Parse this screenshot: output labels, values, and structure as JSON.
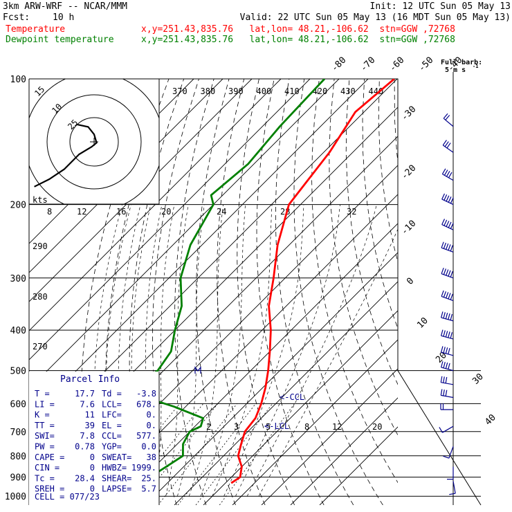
{
  "header": {
    "model": "3km ARW-WRF -- NCAR/MMM",
    "init": "Init: 12 UTC Sun 05 May 13",
    "fcst_label": "Fcst:",
    "fcst_value": "10 h",
    "valid": "Valid: 22 UTC Sun 05 May 13 (16 MDT Sun 05 May 13)",
    "temp_label": "Temperature",
    "temp_info": "x,y=251.43,835.76   lat,lon= 48.21,-106.62  stn=GGW ,72768",
    "dew_label": "Dewpoint temperature",
    "dew_info": "x,y=251.43,835.76   lat,lon= 48.21,-106.62  stn=GGW ,72768"
  },
  "barb_legend": {
    "line1": "Full barb:",
    "line2": "5 m s"
  },
  "hodograph": {
    "ring_labels": [
      "15",
      "10",
      "25"
    ],
    "units": "kts"
  },
  "parcel_info": {
    "title": "Parcel Info",
    "rows": [
      [
        "T  =",
        "17.7",
        "Td =",
        "-3.8"
      ],
      [
        "LI =",
        "7.6",
        "LCL=",
        "678."
      ],
      [
        "K  =",
        "11",
        "LFC=",
        "0."
      ],
      [
        "TT =",
        "39",
        "EL =",
        "0."
      ],
      [
        "SWI=",
        "7.8",
        "CCL=",
        "577."
      ],
      [
        "PW =",
        "0.78",
        "YGP=",
        "0.0"
      ],
      [
        "CAPE =",
        "0",
        "SWEAT=",
        "38"
      ],
      [
        "CIN =",
        "0",
        "HWBZ=",
        "1999."
      ],
      [
        "Tc =",
        "28.4",
        "SHEAR=",
        "25."
      ],
      [
        "SREH =",
        "0",
        "LAPSE=",
        "5.7"
      ]
    ],
    "cell": "CELL = 077/23"
  },
  "annotations": {
    "ccl": "<-CCL",
    "lcl": "<-LCL"
  },
  "chart_data": {
    "type": "line",
    "title": "",
    "ylabel": "",
    "pressure_levels": [
      100,
      200,
      300,
      400,
      500,
      600,
      700,
      800,
      900,
      1000
    ],
    "top_isotherm_labels": [
      "-80",
      "-70",
      "-60",
      "-50",
      "-40"
    ],
    "right_isotherm_labels": [
      "-30",
      "-20",
      "-10",
      "0",
      "10",
      "20",
      "30",
      "40"
    ],
    "theta_e_labels": [
      "370",
      "380",
      "390",
      "400",
      "410",
      "420",
      "430",
      "440"
    ],
    "theta_labels": [
      "290",
      "280",
      "270"
    ],
    "mixing_ratio_labels_upper": [
      "8",
      "12",
      "16",
      "20",
      "24",
      "28",
      "32"
    ],
    "mixing_ratio_labels_lower": [
      "2",
      "3",
      "5",
      "8",
      "12",
      "20"
    ],
    "series": [
      {
        "name": "Temperature",
        "color": "#ff0000",
        "points": [
          [
            100,
            -61
          ],
          [
            120,
            -63
          ],
          [
            150,
            -58
          ],
          [
            200,
            -54
          ],
          [
            250,
            -44
          ],
          [
            300,
            -34
          ],
          [
            350,
            -26
          ],
          [
            400,
            -17
          ],
          [
            450,
            -10
          ],
          [
            500,
            -4
          ],
          [
            550,
            1
          ],
          [
            600,
            5
          ],
          [
            650,
            8
          ],
          [
            700,
            9
          ],
          [
            750,
            12
          ],
          [
            800,
            15
          ],
          [
            850,
            20
          ],
          [
            900,
            23
          ],
          [
            930,
            22
          ]
        ]
      },
      {
        "name": "Dewpoint temperature",
        "color": "#008000",
        "points": [
          [
            100,
            -85
          ],
          [
            130,
            -84
          ],
          [
            160,
            -82
          ],
          [
            190,
            -84
          ],
          [
            200,
            -80
          ],
          [
            250,
            -74
          ],
          [
            300,
            -66
          ],
          [
            350,
            -56
          ],
          [
            400,
            -50
          ],
          [
            450,
            -44
          ],
          [
            500,
            -42
          ],
          [
            560,
            -46
          ],
          [
            610,
            -24
          ],
          [
            650,
            -10
          ],
          [
            680,
            -8
          ],
          [
            700,
            -10
          ],
          [
            750,
            -8
          ],
          [
            800,
            -4
          ],
          [
            850,
            -6
          ],
          [
            900,
            -8
          ],
          [
            920,
            -8
          ]
        ]
      }
    ],
    "wind_barbs": [
      {
        "p": 130,
        "dir": 310,
        "spd": 10
      },
      {
        "p": 150,
        "dir": 305,
        "spd": 15
      },
      {
        "p": 175,
        "dir": 300,
        "spd": 20
      },
      {
        "p": 200,
        "dir": 295,
        "spd": 25
      },
      {
        "p": 230,
        "dir": 295,
        "spd": 25
      },
      {
        "p": 260,
        "dir": 290,
        "spd": 25
      },
      {
        "p": 300,
        "dir": 290,
        "spd": 25
      },
      {
        "p": 340,
        "dir": 290,
        "spd": 25
      },
      {
        "p": 380,
        "dir": 285,
        "spd": 25
      },
      {
        "p": 420,
        "dir": 285,
        "spd": 25
      },
      {
        "p": 460,
        "dir": 285,
        "spd": 20
      },
      {
        "p": 500,
        "dir": 285,
        "spd": 20
      },
      {
        "p": 540,
        "dir": 280,
        "spd": 15
      },
      {
        "p": 580,
        "dir": 280,
        "spd": 15
      },
      {
        "p": 620,
        "dir": 270,
        "spd": 10
      },
      {
        "p": 680,
        "dir": 240,
        "spd": 5
      },
      {
        "p": 760,
        "dir": 200,
        "spd": 5
      },
      {
        "p": 850,
        "dir": 180,
        "spd": 5
      },
      {
        "p": 920,
        "dir": 170,
        "spd": 5
      }
    ],
    "hodograph_trace": [
      [
        -1.2,
        -0.9
      ],
      [
        -0.9,
        -0.75
      ],
      [
        -0.6,
        -0.55
      ],
      [
        -0.3,
        -0.25
      ],
      [
        -0.05,
        -0.1
      ],
      [
        0.05,
        -0.02
      ],
      [
        0.0,
        0.15
      ],
      [
        -0.12,
        0.3
      ],
      [
        -0.35,
        0.35
      ]
    ]
  }
}
